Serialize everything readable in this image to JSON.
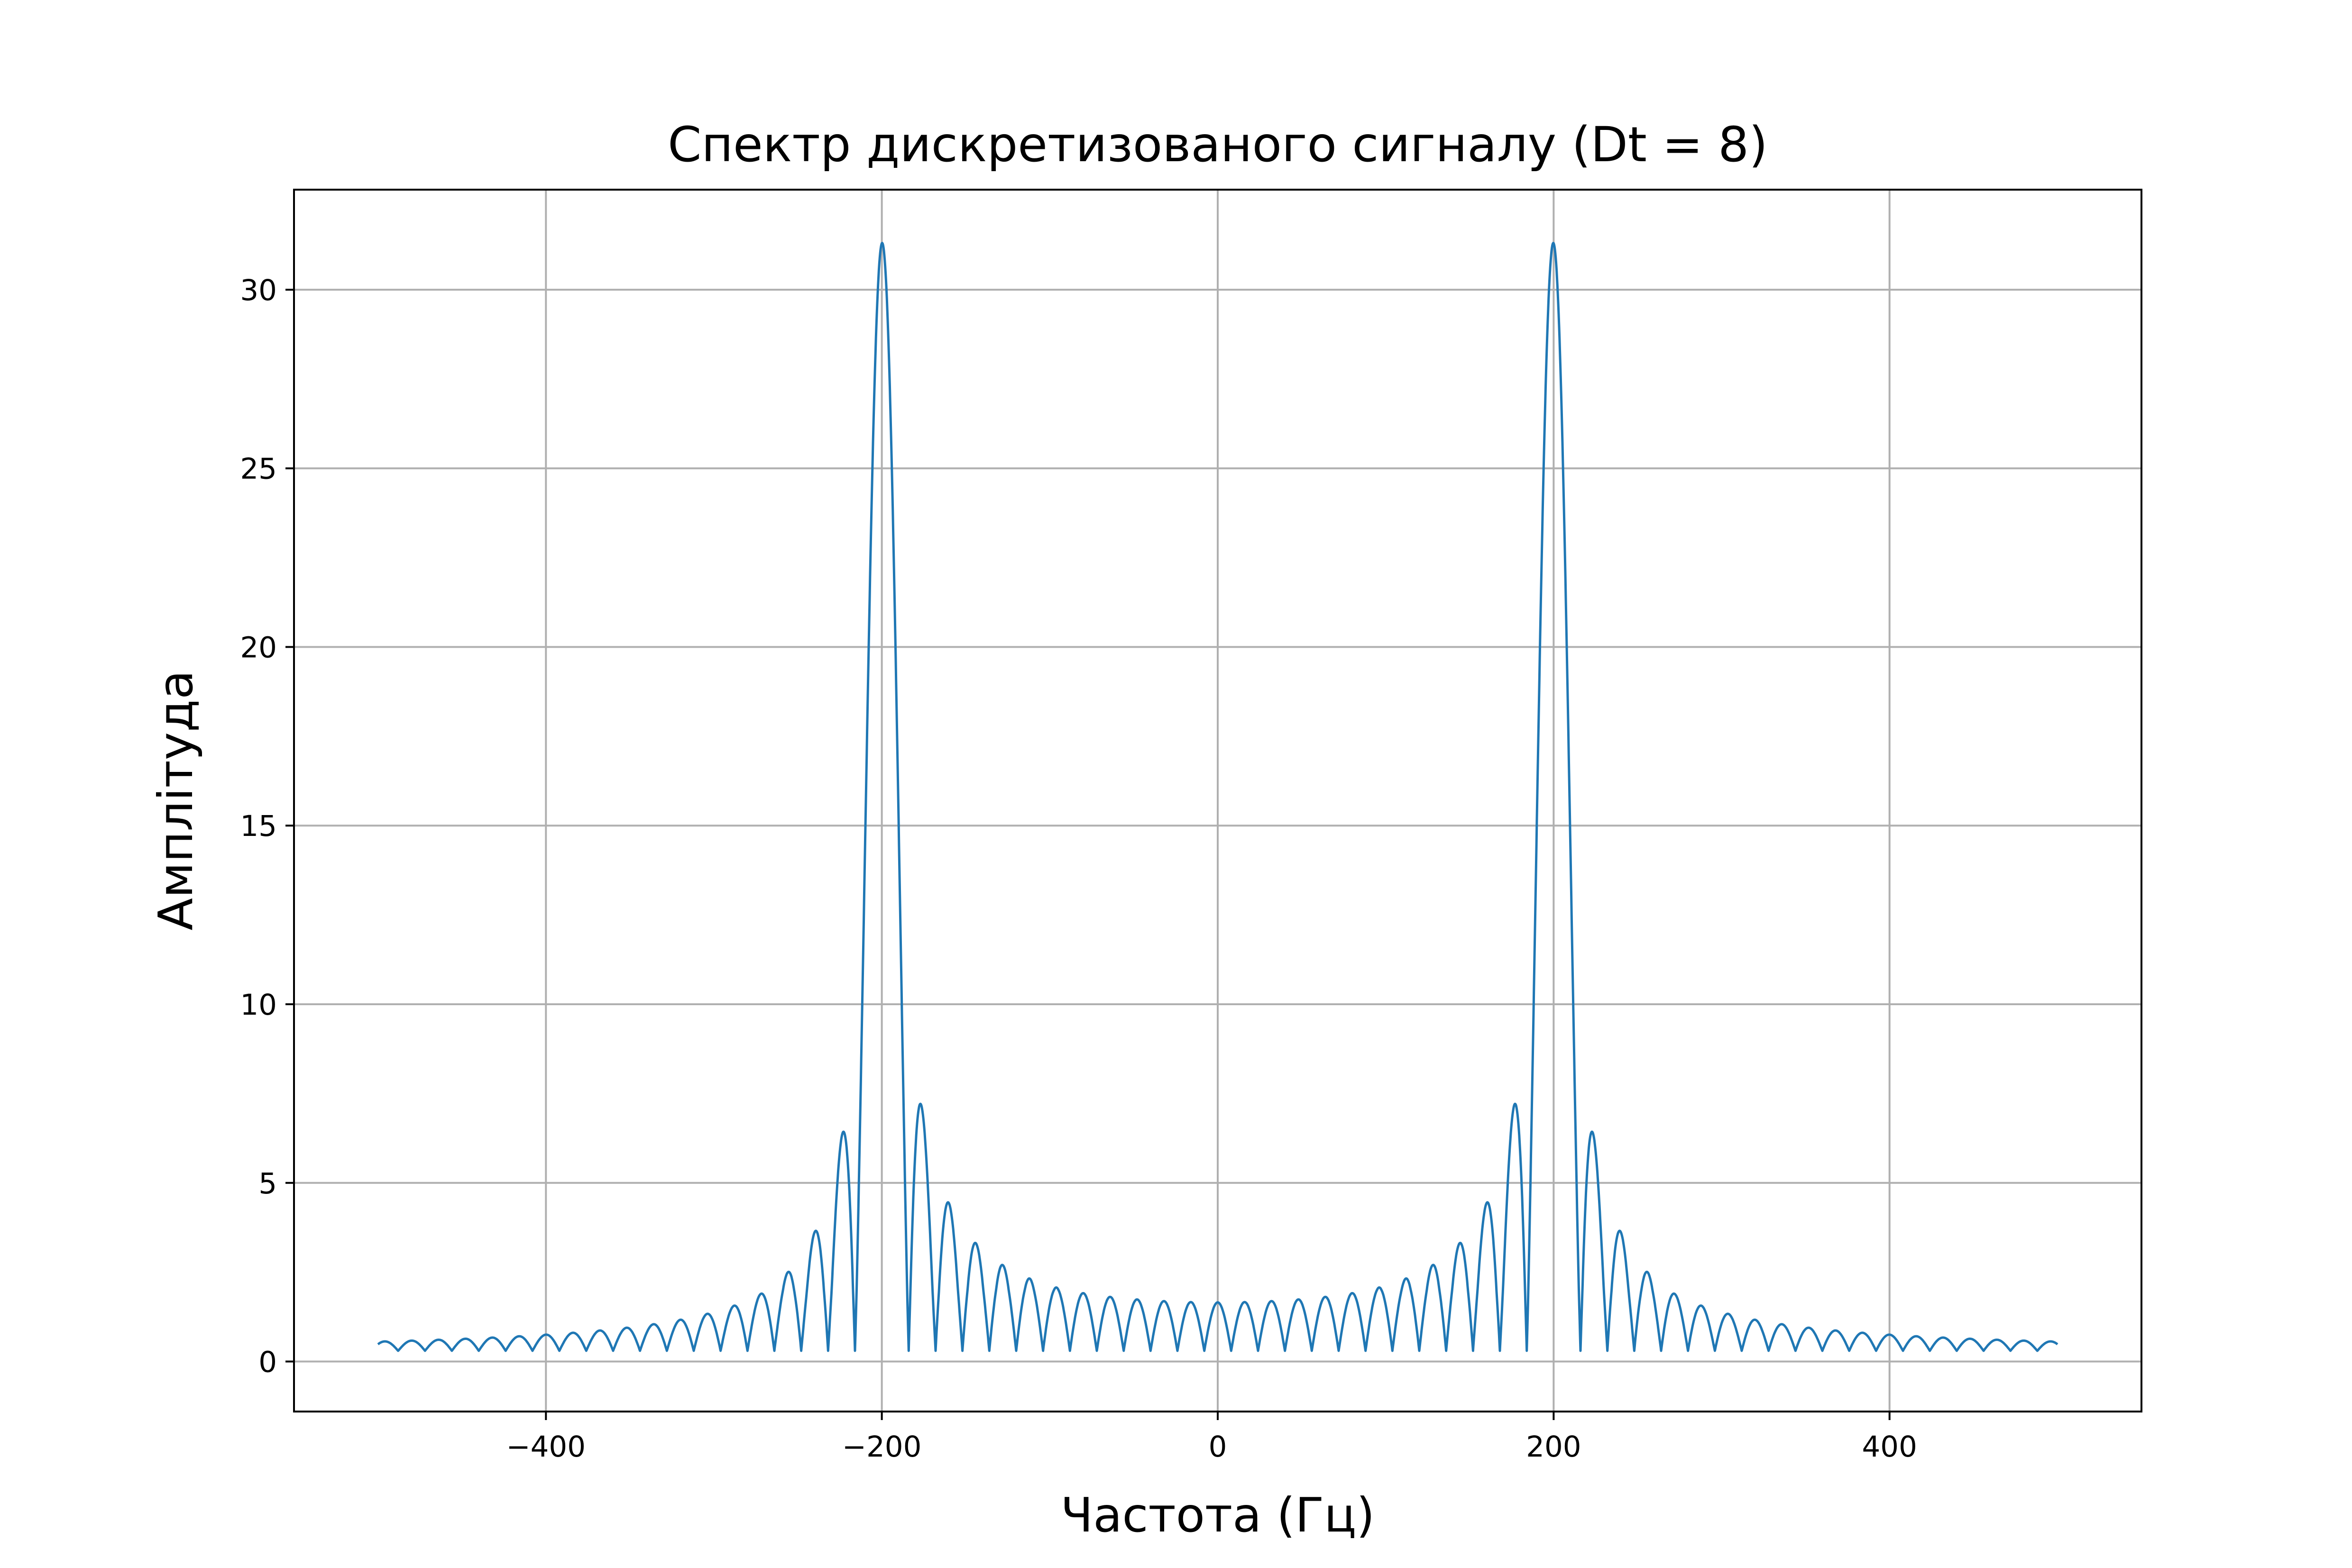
{
  "chart_data": {
    "type": "line",
    "title": "Спектр дискретизованого сигналу (Dt = 8)",
    "xlabel": "Частота (Гц)",
    "ylabel": "Амплітуда",
    "xlim": [
      -550,
      550
    ],
    "ylim": [
      -1.4,
      32.8
    ],
    "x_ticks": [
      -400,
      -200,
      0,
      200,
      400
    ],
    "x_tick_labels": [
      "−400",
      "−200",
      "0",
      "200",
      "400"
    ],
    "y_ticks": [
      0,
      5,
      10,
      15,
      20,
      25,
      30
    ],
    "y_tick_labels": [
      "0",
      "5",
      "10",
      "15",
      "20",
      "25",
      "30"
    ],
    "grid": true,
    "legend": "none",
    "line_color": "#1f77b4",
    "series": [
      {
        "peaks_x": [
          -200,
          200
        ],
        "peak_value": 31.3,
        "x_range": [
          -500,
          500
        ],
        "main_lobe_zeros": [
          -184,
          -216,
          184,
          216
        ],
        "side_lobe_peaks_near": [
          {
            "x": -222,
            "y": 6.4
          },
          {
            "x": -178,
            "y": 7.0
          },
          {
            "x": -238,
            "y": 3.6
          },
          {
            "x": -162,
            "y": 4.4
          },
          {
            "x": 178,
            "y": 7.0
          },
          {
            "x": 222,
            "y": 6.4
          },
          {
            "x": 162,
            "y": 4.4
          },
          {
            "x": 238,
            "y": 3.6
          }
        ],
        "baseline_floor": 0.3
      }
    ]
  }
}
